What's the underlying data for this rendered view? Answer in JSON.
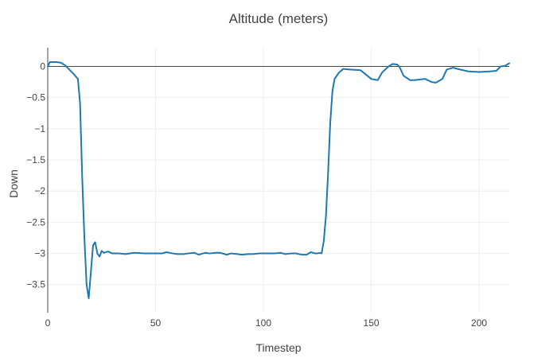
{
  "chart_data": {
    "type": "line",
    "title": "Altitude (meters)",
    "xlabel": "Timestep",
    "ylabel": "Down",
    "xlim": [
      0,
      214
    ],
    "ylim": [
      -3.95,
      0.3
    ],
    "x_ticks": [
      0,
      50,
      100,
      150,
      200
    ],
    "x_tick_labels": [
      "0",
      "50",
      "100",
      "150",
      "200"
    ],
    "y_ticks": [
      0,
      -0.5,
      -1,
      -1.5,
      -2,
      -2.5,
      -3,
      -3.5
    ],
    "y_tick_labels": [
      "0",
      "−0.5",
      "−1",
      "−1.5",
      "−2",
      "−2.5",
      "−3",
      "−3.5"
    ],
    "grid": true,
    "legend": false,
    "colors": {
      "line": "#1f77b4",
      "grid": "#eeeeee",
      "zero_line": "#444444",
      "axis": "#444444"
    },
    "series": [
      {
        "x": [
          0,
          1,
          2,
          4,
          6,
          8,
          10,
          12,
          14,
          15,
          16,
          17,
          18,
          19,
          20,
          21,
          22,
          23,
          24,
          25,
          26,
          28,
          30,
          33,
          36,
          40,
          45,
          50,
          53,
          55,
          58,
          60,
          63,
          65,
          68,
          70,
          73,
          75,
          78,
          80,
          83,
          85,
          88,
          90,
          93,
          95,
          98,
          100,
          103,
          105,
          108,
          110,
          113,
          115,
          118,
          120,
          122,
          124,
          125,
          126,
          127,
          128,
          129,
          130,
          131,
          132,
          133,
          135,
          137,
          140,
          145,
          150,
          153,
          155,
          158,
          160,
          162,
          163,
          165,
          168,
          170,
          175,
          178,
          180,
          183,
          185,
          188,
          190,
          195,
          200,
          205,
          208,
          210,
          212,
          214
        ],
        "y": [
          0.0,
          0.07,
          0.07,
          0.07,
          0.06,
          0.02,
          -0.05,
          -0.12,
          -0.2,
          -0.6,
          -1.8,
          -2.75,
          -3.5,
          -3.72,
          -3.3,
          -2.87,
          -2.82,
          -3.0,
          -3.05,
          -2.96,
          -2.99,
          -2.97,
          -3.0,
          -3.0,
          -3.01,
          -2.99,
          -3.0,
          -3.0,
          -3.0,
          -2.98,
          -3.0,
          -3.01,
          -3.01,
          -3.0,
          -2.99,
          -3.02,
          -2.99,
          -3.0,
          -2.99,
          -2.99,
          -3.02,
          -3.0,
          -3.01,
          -3.02,
          -3.01,
          -3.01,
          -3.0,
          -3.0,
          -3.0,
          -3.0,
          -2.99,
          -3.01,
          -3.0,
          -3.0,
          -3.02,
          -3.02,
          -2.98,
          -3.0,
          -3.0,
          -2.99,
          -3.0,
          -2.8,
          -2.4,
          -1.7,
          -0.9,
          -0.4,
          -0.2,
          -0.1,
          -0.04,
          -0.05,
          -0.06,
          -0.2,
          -0.22,
          -0.1,
          0.0,
          0.04,
          0.03,
          0.0,
          -0.15,
          -0.22,
          -0.22,
          -0.2,
          -0.25,
          -0.26,
          -0.2,
          -0.05,
          -0.02,
          -0.04,
          -0.08,
          -0.09,
          -0.08,
          -0.07,
          0.0,
          0.01,
          0.05
        ]
      }
    ]
  }
}
